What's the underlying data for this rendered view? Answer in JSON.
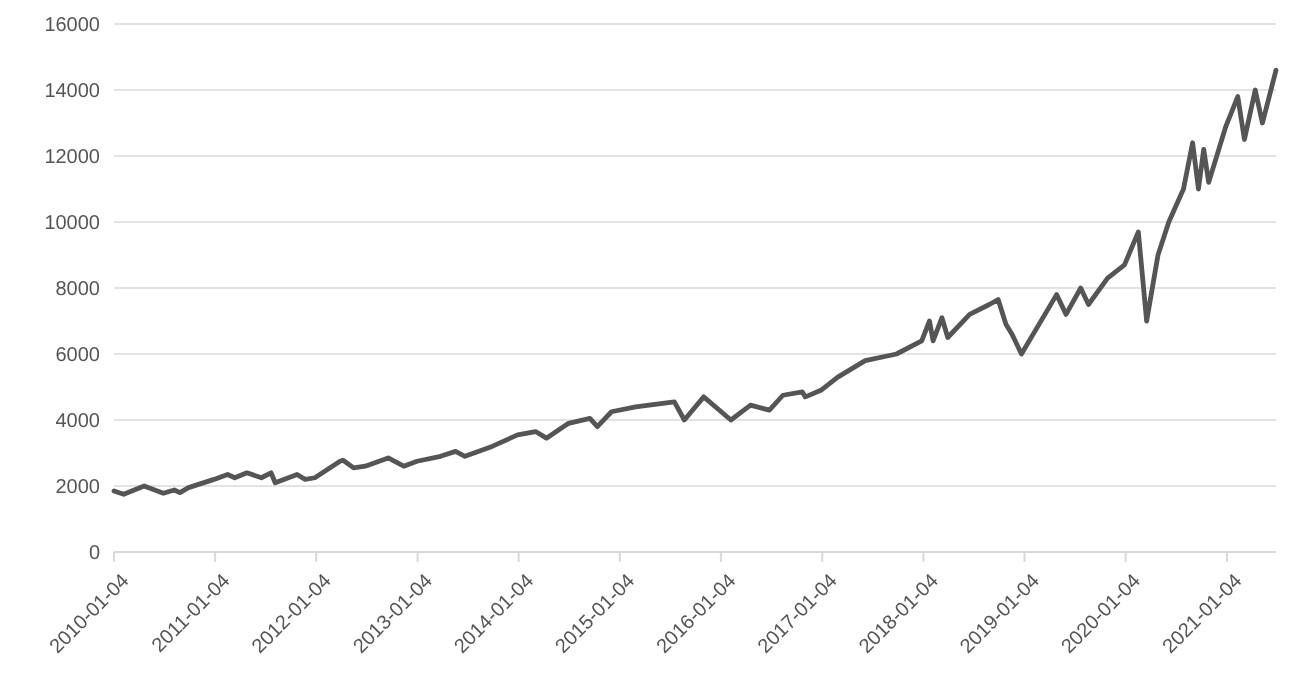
{
  "chart_data": {
    "type": "line",
    "x": [
      "2010-01-04",
      "2010-02-08",
      "2010-04-23",
      "2010-07-01",
      "2010-08-10",
      "2010-08-30",
      "2010-09-30",
      "2010-12-31",
      "2011-02-18",
      "2011-03-16",
      "2011-04-29",
      "2011-06-20",
      "2011-07-25",
      "2011-08-09",
      "2011-10-27",
      "2011-11-25",
      "2011-12-30",
      "2012-03-30",
      "2012-04-10",
      "2012-05-18",
      "2012-06-29",
      "2012-09-20",
      "2012-11-15",
      "2013-01-02",
      "2013-03-28",
      "2013-05-21",
      "2013-06-24",
      "2013-09-30",
      "2013-12-31",
      "2014-03-06",
      "2014-04-14",
      "2014-07-03",
      "2014-09-18",
      "2014-10-15",
      "2014-12-05",
      "2015-03-02",
      "2015-07-20",
      "2015-08-25",
      "2015-11-03",
      "2016-02-09",
      "2016-04-20",
      "2016-06-27",
      "2016-08-15",
      "2016-10-24",
      "2016-11-04",
      "2016-12-30",
      "2017-03-01",
      "2017-06-08",
      "2017-09-29",
      "2017-12-29",
      "2018-01-26",
      "2018-02-08",
      "2018-03-12",
      "2018-04-02",
      "2018-06-20",
      "2018-08-30",
      "2018-10-01",
      "2018-10-29",
      "2018-11-20",
      "2018-12-24",
      "2019-04-30",
      "2019-06-03",
      "2019-07-26",
      "2019-08-23",
      "2019-10-31",
      "2019-12-31",
      "2020-02-19",
      "2020-03-20",
      "2020-04-30",
      "2020-06-08",
      "2020-07-31",
      "2020-09-02",
      "2020-09-23",
      "2020-10-12",
      "2020-10-30",
      "2020-12-31",
      "2021-02-12",
      "2021-03-08",
      "2021-04-16",
      "2021-05-12",
      "2021-06-30"
    ],
    "series": [
      {
        "color": "#555555",
        "values": [
          1850,
          1750,
          2000,
          1780,
          1880,
          1800,
          1950,
          2200,
          2350,
          2250,
          2400,
          2250,
          2400,
          2100,
          2350,
          2200,
          2250,
          2750,
          2780,
          2550,
          2600,
          2850,
          2600,
          2750,
          2900,
          3050,
          2900,
          3200,
          3550,
          3650,
          3450,
          3900,
          4050,
          3800,
          4250,
          4400,
          4550,
          4000,
          4700,
          4000,
          4450,
          4300,
          4750,
          4850,
          4700,
          4900,
          5300,
          5800,
          6000,
          6400,
          7000,
          6400,
          7100,
          6500,
          7200,
          7500,
          7650,
          6900,
          6600,
          6000,
          7800,
          7200,
          8000,
          7500,
          8300,
          8700,
          9700,
          7000,
          9000,
          10000,
          11000,
          12400,
          11000,
          12200,
          11200,
          12900,
          13800,
          12500,
          14000,
          13000,
          14600
        ]
      }
    ],
    "xlim": [
      "2010-01-04",
      "2021-06-30"
    ],
    "xticks": [
      "2010-01-04",
      "2011-01-04",
      "2012-01-04",
      "2013-01-04",
      "2014-01-04",
      "2015-01-04",
      "2016-01-04",
      "2017-01-04",
      "2018-01-04",
      "2019-01-04",
      "2020-01-04",
      "2021-01-04"
    ],
    "ylim": [
      0,
      16000
    ],
    "yticks": [
      0,
      2000,
      4000,
      6000,
      8000,
      10000,
      12000,
      14000,
      16000
    ],
    "grid": "y",
    "line_style": "solid",
    "marker": "none"
  }
}
